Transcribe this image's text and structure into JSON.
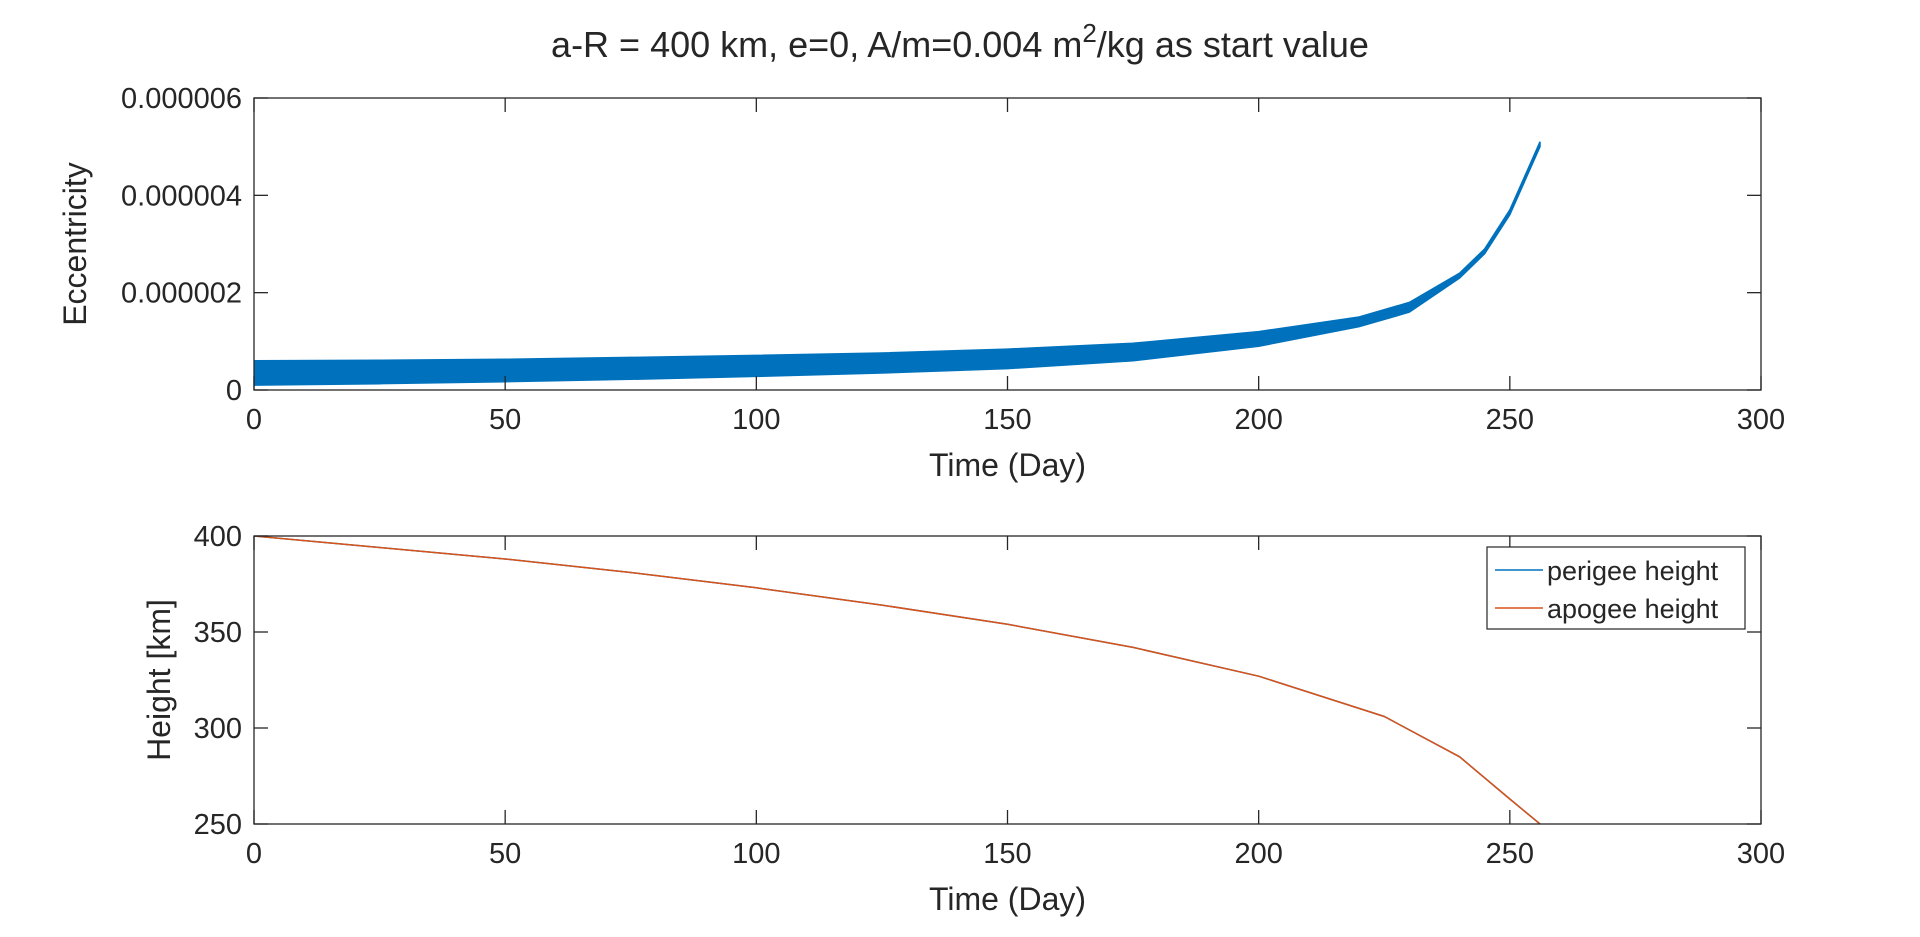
{
  "title": {
    "pre": "a-R = 400 km, e=0, A/m=0.004 m",
    "sup": "2",
    "post": "/kg as start value"
  },
  "colors": {
    "series1": "#0072BD",
    "series2": "#D95319",
    "axis": "#262626",
    "background": "#FFFFFF"
  },
  "chart_data": [
    {
      "type": "area",
      "xlabel": "Time (Day)",
      "ylabel": "Eccentricity",
      "xlim": [
        0,
        300
      ],
      "ylim": [
        0,
        6e-06
      ],
      "xticks": [
        0,
        50,
        100,
        150,
        200,
        250,
        300
      ],
      "yticks": [
        0,
        2e-06,
        4e-06,
        6e-06
      ],
      "xtick_labels": [
        "0",
        "50",
        "100",
        "150",
        "200",
        "250",
        "300"
      ],
      "ytick_labels": [
        "0",
        "0.000002",
        "0.000004",
        "0.000006"
      ],
      "grid": false,
      "series": [
        {
          "color": "#0072BD",
          "x": [
            0,
            25,
            50,
            75,
            100,
            125,
            150,
            175,
            200,
            220,
            230,
            240,
            245,
            250,
            253,
            256
          ],
          "upper": [
            6e-07,
            6.1e-07,
            6.3e-07,
            6.7e-07,
            7.1e-07,
            7.6e-07,
            8.4e-07,
            9.6e-07,
            1.2e-06,
            1.5e-06,
            1.8e-06,
            2.4e-06,
            2.9e-06,
            3.7e-06,
            4.4e-06,
            5.1e-06
          ],
          "lower": [
            1e-07,
            1.3e-07,
            1.7e-07,
            2.2e-07,
            2.8e-07,
            3.5e-07,
            4.4e-07,
            6e-07,
            9e-07,
            1.3e-06,
            1.6e-06,
            2.3e-06,
            2.8e-06,
            3.6e-06,
            4.3e-06,
            5e-06
          ]
        }
      ]
    },
    {
      "type": "line",
      "xlabel": "Time (Day)",
      "ylabel": "Height [km]",
      "xlim": [
        0,
        300
      ],
      "ylim": [
        250,
        400
      ],
      "xticks": [
        0,
        50,
        100,
        150,
        200,
        250,
        300
      ],
      "yticks": [
        250,
        300,
        350,
        400
      ],
      "xtick_labels": [
        "0",
        "50",
        "100",
        "150",
        "200",
        "250",
        "300"
      ],
      "ytick_labels": [
        "250",
        "300",
        "350",
        "400"
      ],
      "grid": false,
      "legend": "top-right",
      "series": [
        {
          "name": "perigee height",
          "color": "#0072BD",
          "x": [
            0,
            25,
            50,
            75,
            100,
            125,
            150,
            175,
            200,
            225,
            240,
            250,
            256
          ],
          "y": [
            400,
            394,
            388,
            381,
            373,
            364,
            354,
            342,
            327,
            306,
            285,
            263,
            250
          ]
        },
        {
          "name": "apogee height",
          "color": "#D95319",
          "x": [
            0,
            25,
            50,
            75,
            100,
            125,
            150,
            175,
            200,
            225,
            240,
            250,
            256
          ],
          "y": [
            400,
            394,
            388,
            381,
            373,
            364,
            354,
            342,
            327,
            306,
            285,
            263,
            250
          ]
        }
      ]
    }
  ]
}
